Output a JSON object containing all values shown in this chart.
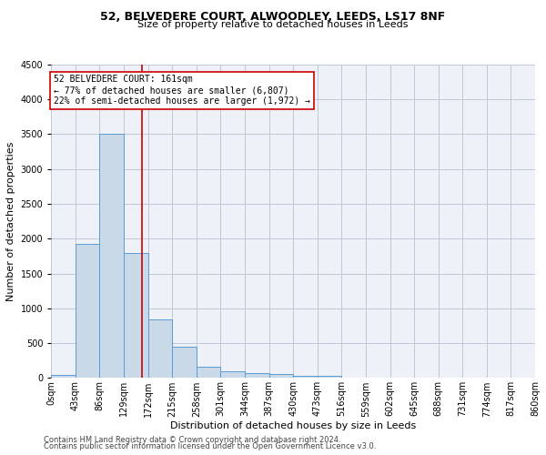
{
  "title_line1": "52, BELVEDERE COURT, ALWOODLEY, LEEDS, LS17 8NF",
  "title_line2": "Size of property relative to detached houses in Leeds",
  "xlabel": "Distribution of detached houses by size in Leeds",
  "ylabel": "Number of detached properties",
  "bar_color": "#c9d9e8",
  "bar_edgecolor": "#5b9bd5",
  "grid_color": "#c0c8d8",
  "annotation_box_color": "#cc0000",
  "vline_color": "#cc0000",
  "bins": [
    0,
    43,
    86,
    129,
    172,
    215,
    258,
    301,
    344,
    387,
    430,
    473,
    516,
    559,
    602,
    645,
    688,
    731,
    774,
    817,
    860
  ],
  "bin_labels": [
    "0sqm",
    "43sqm",
    "86sqm",
    "129sqm",
    "172sqm",
    "215sqm",
    "258sqm",
    "301sqm",
    "344sqm",
    "387sqm",
    "430sqm",
    "473sqm",
    "516sqm",
    "559sqm",
    "602sqm",
    "645sqm",
    "688sqm",
    "731sqm",
    "774sqm",
    "817sqm",
    "860sqm"
  ],
  "bar_heights": [
    50,
    1920,
    3500,
    1790,
    840,
    455,
    165,
    95,
    70,
    55,
    35,
    30,
    0,
    0,
    0,
    0,
    0,
    0,
    0,
    0
  ],
  "ylim": [
    0,
    4500
  ],
  "yticks": [
    0,
    500,
    1000,
    1500,
    2000,
    2500,
    3000,
    3500,
    4000,
    4500
  ],
  "vline_x": 161,
  "annotation_text_line1": "52 BELVEDERE COURT: 161sqm",
  "annotation_text_line2": "← 77% of detached houses are smaller (6,807)",
  "annotation_text_line3": "22% of semi-detached houses are larger (1,972) →",
  "footer_line1": "Contains HM Land Registry data © Crown copyright and database right 2024.",
  "footer_line2": "Contains public sector information licensed under the Open Government Licence v3.0.",
  "fig_bg": "#ffffff",
  "plot_bg": "#eef2f8",
  "title1_fontsize": 9,
  "title2_fontsize": 8,
  "ylabel_fontsize": 8,
  "xlabel_fontsize": 8,
  "tick_fontsize": 7,
  "annotation_fontsize": 7,
  "footer_fontsize": 6
}
